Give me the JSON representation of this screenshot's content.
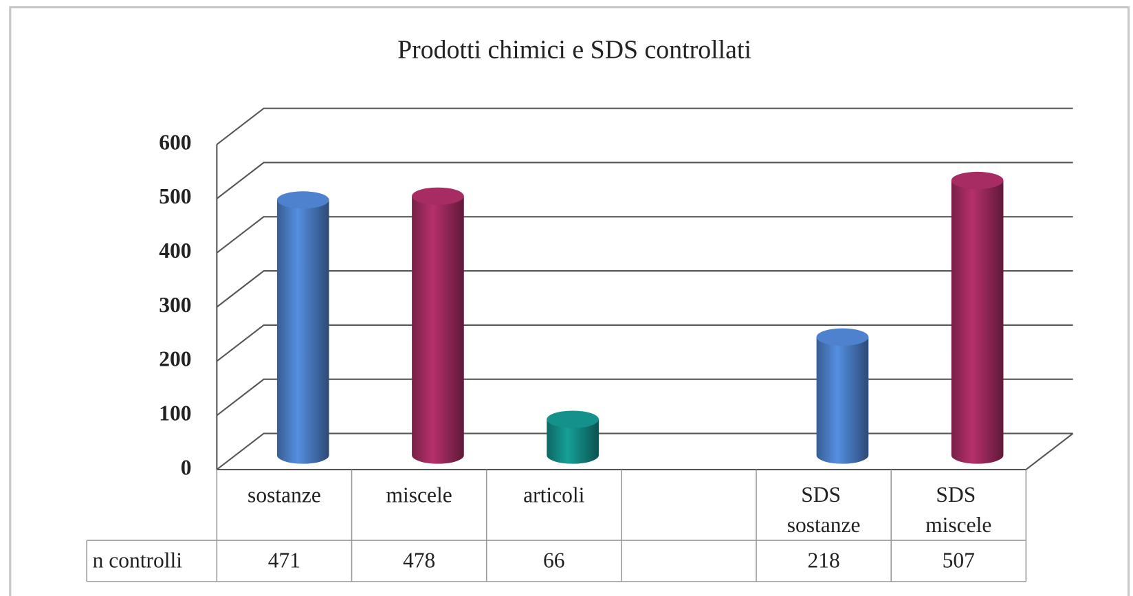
{
  "chart_data": {
    "type": "bar3d",
    "title": "Prodotti chimici e SDS controllati",
    "categories": [
      "sostanze",
      "miscele",
      "articoli",
      null,
      "SDS sostanze",
      "SDS miscele"
    ],
    "series": [
      {
        "name": "n controlli",
        "values": [
          471,
          478,
          66,
          null,
          218,
          507
        ],
        "colors": [
          "#4a7cc4",
          "#9e2a5e",
          "#138a84",
          null,
          "#4a7cc4",
          "#9e2a5e"
        ]
      }
    ],
    "ylim": [
      0,
      600
    ],
    "yticks": [
      0,
      100,
      200,
      300,
      400,
      500,
      600
    ],
    "grid": true,
    "data_table": true
  }
}
